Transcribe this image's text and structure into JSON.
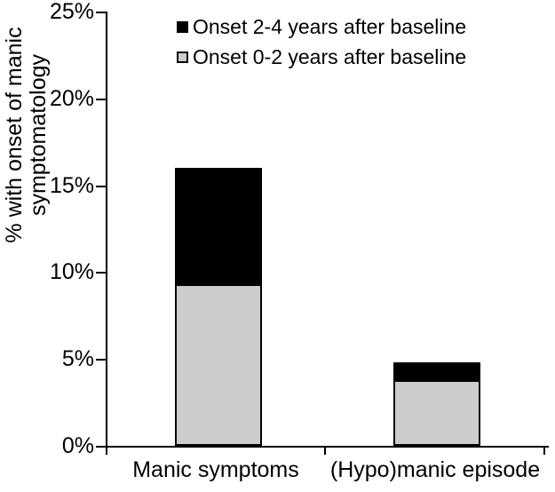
{
  "chart_data": {
    "type": "bar",
    "stacked": true,
    "title": "",
    "categories": [
      "Manic symptoms",
      "(Hypo)manic episode"
    ],
    "series": [
      {
        "name": "Onset 0-2 years after baseline",
        "color": "#cccccc",
        "values": [
          9.3,
          3.8
        ]
      },
      {
        "name": "Onset 2-4 years after baseline",
        "color": "#000000",
        "values": [
          6.7,
          1.0
        ]
      }
    ],
    "ylabel": "% with onset of manic symptomatology",
    "ylabel_lines": [
      "% with onset of manic",
      "symptomatology"
    ],
    "xlabel": "",
    "ylim": [
      0,
      25
    ],
    "ytick_labels": [
      "25%",
      "20%",
      "15%",
      "10%",
      "5%",
      "0%"
    ],
    "grid": false,
    "legend_position": "top-right",
    "legend": [
      {
        "label": "Onset 2-4 years after baseline",
        "color": "#000000"
      },
      {
        "label": "Onset 0-2 years after baseline",
        "color": "#cccccc"
      }
    ],
    "axis_color": "#000000",
    "text_color": "#000000",
    "background_color": "#ffffff"
  }
}
